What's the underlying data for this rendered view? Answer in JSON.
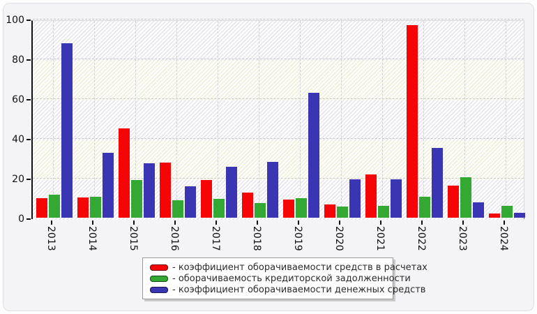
{
  "chart_data": {
    "type": "bar",
    "title": "",
    "categories": [
      "2013",
      "2014",
      "2015",
      "2016",
      "2017",
      "2018",
      "2019",
      "2020",
      "2021",
      "2022",
      "2023",
      "2024"
    ],
    "series": [
      {
        "name": "коэффициент оборачиваемости средств в расчетах",
        "color": "#f50505",
        "values": [
          9.7,
          10.2,
          44.8,
          27.7,
          18.9,
          12.5,
          9.2,
          6.6,
          21.8,
          96.8,
          16.2,
          2.0
        ]
      },
      {
        "name": "оборачиваемость кредиторской задолженности",
        "color": "#33a933",
        "values": [
          11.7,
          10.7,
          18.8,
          8.9,
          9.4,
          7.3,
          9.8,
          5.5,
          6.0,
          10.6,
          20.3,
          6.0
        ]
      },
      {
        "name": "коэффициент оборачиваемости денежных средств",
        "color": "#3a35b2",
        "values": [
          87.6,
          32.6,
          27.5,
          15.9,
          25.6,
          28.2,
          62.7,
          19.4,
          19.2,
          35.0,
          7.8,
          2.4
        ]
      }
    ],
    "ylim": [
      0,
      100
    ],
    "yticks": [
      0,
      20,
      40,
      60,
      80,
      100
    ],
    "grid": "dashed",
    "plot_background": "alternating hatched bands",
    "legend_position": "bottom-center",
    "legend_prefix": "- "
  }
}
